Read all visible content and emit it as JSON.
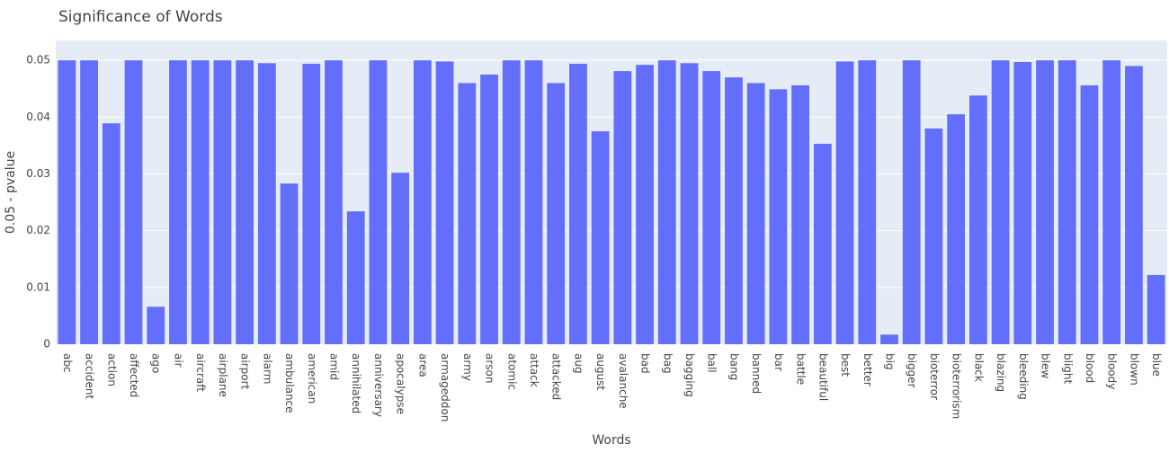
{
  "chart_data": {
    "type": "bar",
    "title": "Significance of Words",
    "x_label": "Words",
    "y_label": "0.05 - pvalue",
    "categories": [
      "abc",
      "accident",
      "action",
      "affected",
      "ago",
      "air",
      "aircraft",
      "airplane",
      "airport",
      "alarm",
      "ambulance",
      "american",
      "amid",
      "annihilated",
      "anniversary",
      "apocalypse",
      "area",
      "armageddon",
      "army",
      "arson",
      "atomic",
      "attack",
      "attacked",
      "aug",
      "august",
      "avalanche",
      "bad",
      "bag",
      "bagging",
      "ball",
      "bang",
      "banned",
      "bar",
      "battle",
      "beautiful",
      "best",
      "better",
      "big",
      "bigger",
      "bioterror",
      "bioterrorism",
      "black",
      "blazing",
      "bleeding",
      "blew",
      "blight",
      "blood",
      "bloody",
      "blown",
      "blue"
    ],
    "values": [
      0.05,
      0.05,
      0.0389,
      0.05,
      0.0066,
      0.05,
      0.05,
      0.05,
      0.05,
      0.0495,
      0.0283,
      0.0494,
      0.05,
      0.0234,
      0.05,
      0.0302,
      0.05,
      0.0498,
      0.046,
      0.0475,
      0.05,
      0.05,
      0.046,
      0.0494,
      0.0375,
      0.0481,
      0.0492,
      0.05,
      0.0495,
      0.0481,
      0.047,
      0.046,
      0.0449,
      0.0456,
      0.0353,
      0.0498,
      0.05,
      0.0017,
      0.05,
      0.038,
      0.0405,
      0.0438,
      0.05,
      0.0497,
      0.05,
      0.05,
      0.0456,
      0.05,
      0.049,
      0.0122
    ],
    "color": "#636efa",
    "ylim": [
      0,
      0.0535
    ],
    "yticks": [
      0,
      0.01,
      0.02,
      0.03,
      0.04,
      0.05
    ],
    "grid": true
  }
}
